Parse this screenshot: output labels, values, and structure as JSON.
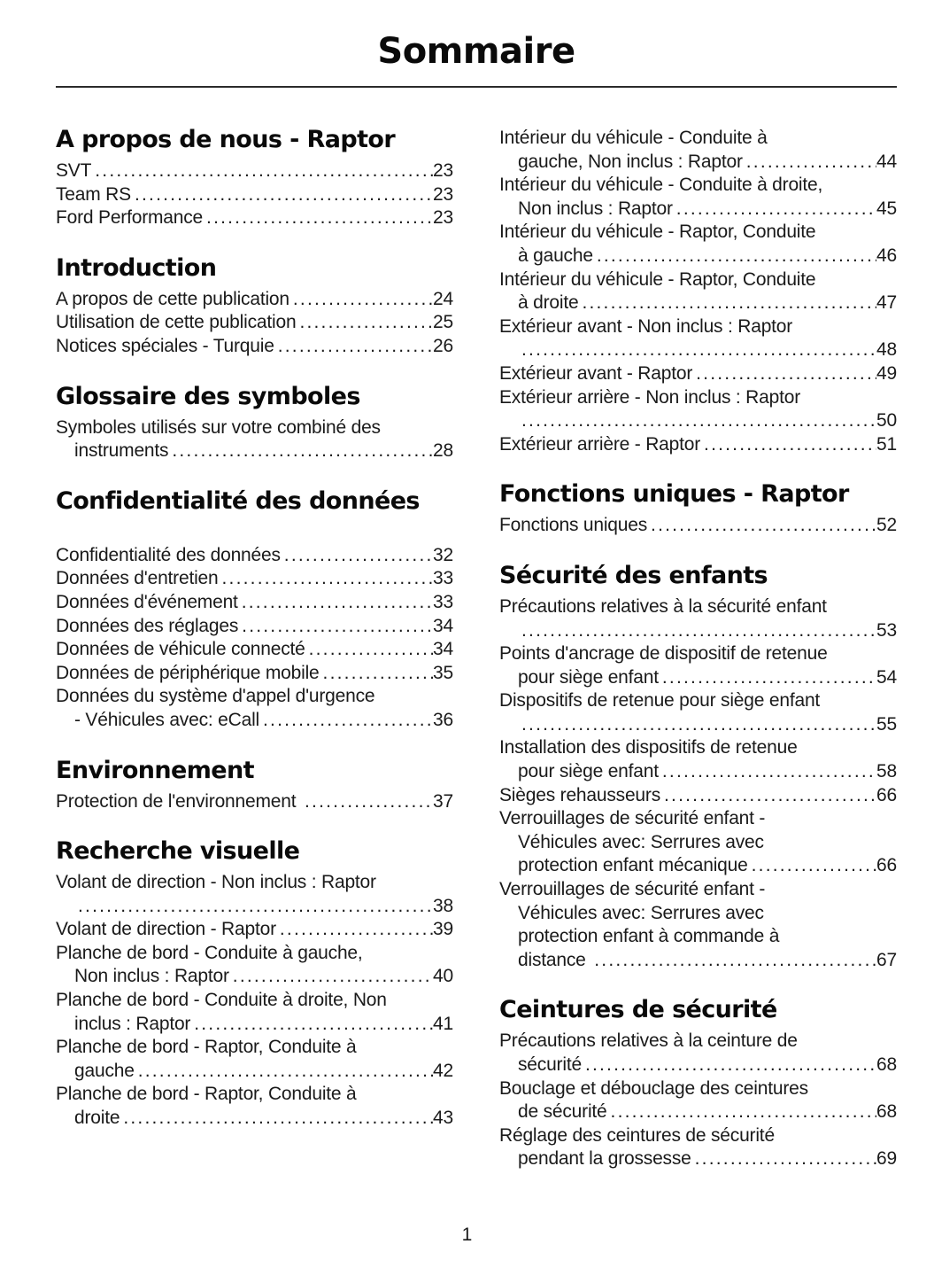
{
  "page": {
    "title": "Sommaire",
    "number": "1"
  },
  "colors": {
    "ink": "#1a1a1a",
    "background": "#ffffff"
  },
  "columns": [
    {
      "sections": [
        {
          "heading": "A propos de nous - Raptor",
          "entries": [
            {
              "lines": [
                {
                  "text": "SVT",
                  "page": "23"
                }
              ]
            },
            {
              "lines": [
                {
                  "text": "Team RS",
                  "page": "23"
                }
              ]
            },
            {
              "lines": [
                {
                  "text": "Ford Performance",
                  "page": "23"
                }
              ]
            }
          ]
        },
        {
          "heading": "Introduction",
          "entries": [
            {
              "lines": [
                {
                  "text": "A propos de cette publication",
                  "page": "24"
                }
              ]
            },
            {
              "lines": [
                {
                  "text": "Utilisation de cette publication",
                  "page": "25"
                }
              ]
            },
            {
              "lines": [
                {
                  "text": "Notices spéciales - Turquie",
                  "page": "26"
                }
              ]
            }
          ]
        },
        {
          "heading": "Glossaire des symboles",
          "entries": [
            {
              "lines": [
                {
                  "text": "Symboles utilisés sur votre combiné des"
                },
                {
                  "text": "instruments",
                  "page": "28",
                  "indent": true
                }
              ]
            }
          ]
        },
        {
          "heading": "Confidentialité des données",
          "gap_after_heading": true,
          "entries": [
            {
              "lines": [
                {
                  "text": "Confidentialité des données",
                  "page": "32"
                }
              ]
            },
            {
              "lines": [
                {
                  "text": "Données d'entretien",
                  "page": "33"
                }
              ]
            },
            {
              "lines": [
                {
                  "text": "Données d'événement",
                  "page": "33"
                }
              ]
            },
            {
              "lines": [
                {
                  "text": "Données des réglages",
                  "page": "34"
                }
              ]
            },
            {
              "lines": [
                {
                  "text": "Données de véhicule connecté",
                  "page": "34"
                }
              ]
            },
            {
              "lines": [
                {
                  "text": "Données de périphérique mobile",
                  "page": "35"
                }
              ]
            },
            {
              "lines": [
                {
                  "text": "Données du système d'appel d'urgence"
                },
                {
                  "text": "- Véhicules avec: eCall",
                  "page": "36",
                  "indent": true
                }
              ]
            }
          ]
        },
        {
          "heading": "Environnement",
          "entries": [
            {
              "lines": [
                {
                  "text": "Protection de l'environnement ",
                  "page": "37"
                }
              ]
            }
          ]
        },
        {
          "heading": "Recherche visuelle",
          "entries": [
            {
              "lines": [
                {
                  "text": "Volant de direction - Non inclus : Raptor"
                },
                {
                  "text": "",
                  "page": "38",
                  "indent": true
                }
              ]
            },
            {
              "lines": [
                {
                  "text": "Volant de direction - Raptor",
                  "page": "39"
                }
              ]
            },
            {
              "lines": [
                {
                  "text": "Planche de bord - Conduite à gauche,"
                },
                {
                  "text": "Non inclus : Raptor",
                  "page": "40",
                  "indent": true
                }
              ]
            },
            {
              "lines": [
                {
                  "text": "Planche de bord - Conduite à droite, Non"
                },
                {
                  "text": "inclus : Raptor",
                  "page": "41",
                  "indent": true
                }
              ]
            },
            {
              "lines": [
                {
                  "text": "Planche de bord - Raptor, Conduite à"
                },
                {
                  "text": "gauche",
                  "page": "42",
                  "indent": true
                }
              ]
            },
            {
              "lines": [
                {
                  "text": "Planche de bord - Raptor, Conduite à"
                },
                {
                  "text": "droite",
                  "page": "43",
                  "indent": true
                }
              ]
            }
          ]
        }
      ]
    },
    {
      "sections": [
        {
          "heading": null,
          "entries": [
            {
              "lines": [
                {
                  "text": "Intérieur du véhicule - Conduite à"
                },
                {
                  "text": "gauche, Non inclus : Raptor",
                  "page": "44",
                  "indent": true
                }
              ]
            },
            {
              "lines": [
                {
                  "text": "Intérieur du véhicule - Conduite à droite,"
                },
                {
                  "text": "Non inclus : Raptor",
                  "page": "45",
                  "indent": true
                }
              ]
            },
            {
              "lines": [
                {
                  "text": "Intérieur du véhicule - Raptor, Conduite"
                },
                {
                  "text": "à gauche",
                  "page": "46",
                  "indent": true
                }
              ]
            },
            {
              "lines": [
                {
                  "text": "Intérieur du véhicule - Raptor, Conduite"
                },
                {
                  "text": "à droite",
                  "page": "47",
                  "indent": true
                }
              ]
            },
            {
              "lines": [
                {
                  "text": "Extérieur avant - Non inclus : Raptor"
                },
                {
                  "text": "",
                  "page": "48",
                  "indent": true
                }
              ]
            },
            {
              "lines": [
                {
                  "text": "Extérieur avant - Raptor",
                  "page": "49"
                }
              ]
            },
            {
              "lines": [
                {
                  "text": "Extérieur arrière - Non inclus : Raptor"
                },
                {
                  "text": "",
                  "page": "50",
                  "indent": true
                }
              ]
            },
            {
              "lines": [
                {
                  "text": "Extérieur arrière - Raptor",
                  "page": "51"
                }
              ]
            }
          ]
        },
        {
          "heading": "Fonctions uniques - Raptor",
          "entries": [
            {
              "lines": [
                {
                  "text": "Fonctions uniques",
                  "page": "52"
                }
              ]
            }
          ]
        },
        {
          "heading": "Sécurité des enfants",
          "entries": [
            {
              "lines": [
                {
                  "text": "Précautions relatives à la sécurité enfant"
                },
                {
                  "text": "",
                  "page": "53",
                  "indent": true
                }
              ]
            },
            {
              "lines": [
                {
                  "text": "Points d'ancrage de dispositif de retenue"
                },
                {
                  "text": "pour siège enfant",
                  "page": "54",
                  "indent": true
                }
              ]
            },
            {
              "lines": [
                {
                  "text": "Dispositifs de retenue pour siège enfant"
                },
                {
                  "text": "",
                  "page": "55",
                  "indent": true
                }
              ]
            },
            {
              "lines": [
                {
                  "text": "Installation des dispositifs de retenue"
                },
                {
                  "text": "pour siège enfant",
                  "page": "58",
                  "indent": true
                }
              ]
            },
            {
              "lines": [
                {
                  "text": "Sièges rehausseurs",
                  "page": "66"
                }
              ]
            },
            {
              "lines": [
                {
                  "text": "Verrouillages de sécurité enfant -"
                },
                {
                  "text": "Véhicules avec: Serrures avec",
                  "indent": true
                },
                {
                  "text": "protection enfant mécanique",
                  "page": "66",
                  "indent": true
                }
              ]
            },
            {
              "lines": [
                {
                  "text": "Verrouillages de sécurité enfant -"
                },
                {
                  "text": "Véhicules avec: Serrures avec",
                  "indent": true
                },
                {
                  "text": "protection enfant à commande à",
                  "indent": true
                },
                {
                  "text": "distance ",
                  "page": "67",
                  "indent": true
                }
              ]
            }
          ]
        },
        {
          "heading": "Ceintures de sécurité",
          "entries": [
            {
              "lines": [
                {
                  "text": "Précautions relatives à la ceinture de"
                },
                {
                  "text": "sécurité",
                  "page": "68",
                  "indent": true
                }
              ]
            },
            {
              "lines": [
                {
                  "text": "Bouclage et débouclage des ceintures"
                },
                {
                  "text": "de sécurité",
                  "page": "68",
                  "indent": true
                }
              ]
            },
            {
              "lines": [
                {
                  "text": "Réglage des ceintures de sécurité"
                },
                {
                  "text": "pendant la grossesse",
                  "page": "69",
                  "indent": true
                }
              ]
            }
          ]
        }
      ]
    }
  ]
}
